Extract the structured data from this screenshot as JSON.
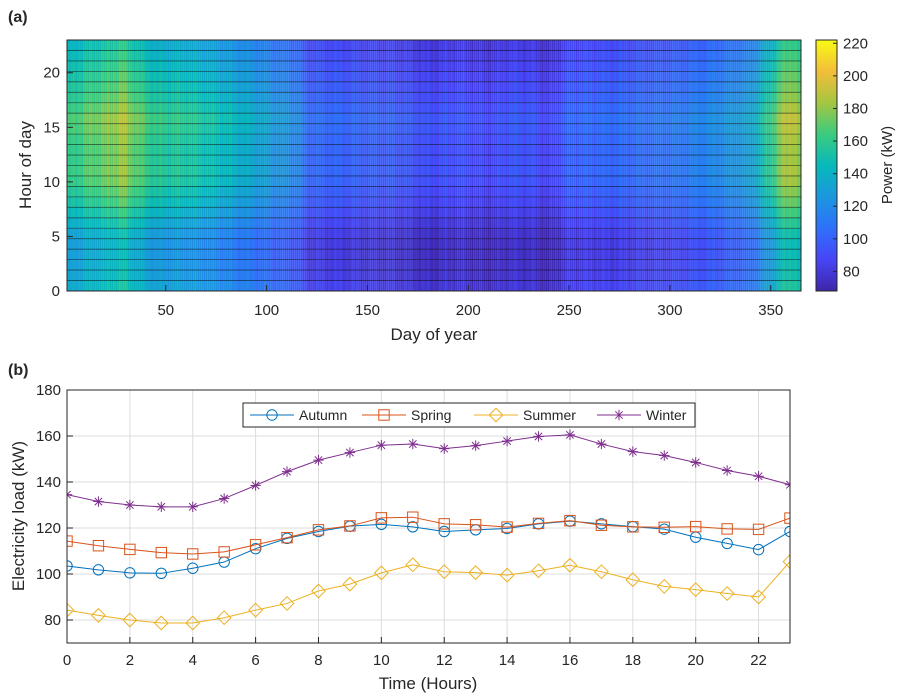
{
  "chart_data": [
    {
      "type": "heatmap",
      "panel_label": "(a)",
      "xlabel": "Day of year",
      "ylabel": "Hour of day",
      "xlim": [
        1,
        365
      ],
      "ylim": [
        0,
        23
      ],
      "xticks": [
        50,
        100,
        150,
        200,
        250,
        300,
        350
      ],
      "yticks": [
        0,
        5,
        10,
        15,
        20
      ],
      "colorbar": {
        "label": "Power (kW)",
        "range": [
          68,
          222
        ],
        "ticks": [
          80,
          100,
          120,
          140,
          160,
          180,
          200,
          220
        ],
        "colormap": [
          "#3e26a8",
          "#4745f6",
          "#2f70fb",
          "#1b97de",
          "#07b9ba",
          "#3bcb7f",
          "#a5c640",
          "#f3bd3a",
          "#f9fb15"
        ]
      },
      "seasonal_power_profile_kW": {
        "day": [
          1,
          10,
          20,
          28,
          35,
          45,
          60,
          75,
          85,
          95,
          105,
          115,
          120,
          135,
          150,
          165,
          180,
          195,
          210,
          222,
          232,
          240,
          250,
          262,
          275,
          290,
          305,
          318,
          330,
          340,
          350,
          356,
          361,
          365
        ],
        "power": [
          150,
          158,
          163,
          172,
          160,
          148,
          146,
          138,
          132,
          126,
          118,
          112,
          98,
          96,
          94,
          92,
          86,
          88,
          82,
          90,
          88,
          80,
          94,
          96,
          98,
          100,
          104,
          110,
          116,
          122,
          150,
          170,
          178,
          166
        ]
      },
      "hourly_scale": [
        0.86,
        0.84,
        0.83,
        0.82,
        0.82,
        0.84,
        0.88,
        0.92,
        0.96,
        0.99,
        1.02,
        1.03,
        1.02,
        1.02,
        1.03,
        1.05,
        1.06,
        1.03,
        1.0,
        0.98,
        0.96,
        0.94,
        0.92,
        0.9
      ]
    },
    {
      "type": "line",
      "panel_label": "(b)",
      "xlabel": "Time (Hours)",
      "ylabel": "Electricity load (kW)",
      "xlim": [
        0,
        23
      ],
      "ylim": [
        70,
        180
      ],
      "xticks": [
        0,
        2,
        4,
        6,
        8,
        10,
        12,
        14,
        16,
        18,
        20,
        22
      ],
      "yticks": [
        80,
        100,
        120,
        140,
        160,
        180
      ],
      "grid": true,
      "legend_position": "top-center",
      "x": [
        0,
        1,
        2,
        3,
        4,
        5,
        6,
        7,
        8,
        9,
        10,
        11,
        12,
        13,
        14,
        15,
        16,
        17,
        18,
        19,
        20,
        21,
        22,
        23
      ],
      "series": [
        {
          "name": "Autumn",
          "color": "#0072bd",
          "marker": "circle",
          "values": [
            103.5,
            101.8,
            100.5,
            100.3,
            102.5,
            105.2,
            111,
            115.5,
            118.5,
            120.8,
            121.6,
            120.5,
            118.5,
            119.2,
            119.8,
            121.8,
            123,
            121.8,
            120.6,
            119.5,
            116,
            113.3,
            110.6,
            118.5
          ]
        },
        {
          "name": "Spring",
          "color": "#d95319",
          "marker": "square",
          "values": [
            114.3,
            112.3,
            110.7,
            109.3,
            108.7,
            109.6,
            112.7,
            115.8,
            119.2,
            120.9,
            124.4,
            124.7,
            121.8,
            121.4,
            120.4,
            122,
            123.2,
            121.2,
            120.5,
            120.3,
            120.6,
            119.6,
            119.4,
            124.3
          ]
        },
        {
          "name": "Summer",
          "color": "#edb120",
          "marker": "diamond",
          "values": [
            84.3,
            82,
            80,
            78.7,
            78.7,
            81,
            84.3,
            87.2,
            92.6,
            95.6,
            100.5,
            104,
            101,
            100.6,
            99.5,
            101.4,
            103.8,
            101,
            97.5,
            94.6,
            93.2,
            91.5,
            90,
            105.4
          ]
        },
        {
          "name": "Winter",
          "color": "#7e2f8e",
          "marker": "star",
          "values": [
            134.5,
            131.5,
            130,
            129.2,
            129.2,
            132.8,
            138.5,
            144.5,
            149.5,
            152.8,
            156,
            156.5,
            154.5,
            155.8,
            157.8,
            159.8,
            160.5,
            156.5,
            153.2,
            151.5,
            148.5,
            145,
            142.5,
            138.8
          ]
        }
      ]
    }
  ]
}
